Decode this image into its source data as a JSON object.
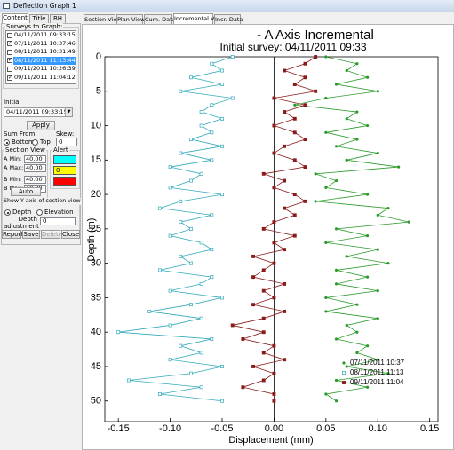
{
  "window": {
    "title": "Deflection Graph 1"
  },
  "left_panel": {
    "tabs": [
      "Content",
      "Title",
      "BH"
    ],
    "active_tab": 0,
    "surveys_label": "Surveys to Graph:",
    "surveys": [
      {
        "label": "04/11/2011 09:33:15",
        "checked": false,
        "selected": false
      },
      {
        "label": "07/11/2011 10:37:46",
        "checked": true,
        "selected": false
      },
      {
        "label": "08/11/2011 10:31:49",
        "checked": false,
        "selected": false
      },
      {
        "label": "08/11/2011 11:13:44",
        "checked": true,
        "selected": true
      },
      {
        "label": "09/11/2011 10:26:39",
        "checked": false,
        "selected": false
      },
      {
        "label": "09/11/2011 11:04:12",
        "checked": true,
        "selected": false
      }
    ],
    "initial_label": "Initial",
    "initial_value": "04/11/2011 09:33:15",
    "apply": "Apply",
    "sum_from_label": "Sum From:",
    "sum_from_options": [
      "Bottom",
      "Top"
    ],
    "sum_from_selected": 0,
    "skew_label": "Skew:",
    "skew_value": "0",
    "section_view_label": "Section View",
    "section_fields": [
      {
        "label": "A Min:",
        "value": "40.00"
      },
      {
        "label": "A Max:",
        "value": "40.00"
      },
      {
        "label": "B Min:",
        "value": "40.00"
      },
      {
        "label": "B Max:",
        "value": "40.00"
      }
    ],
    "alert_label": "Alert",
    "alerts": [
      {
        "color": "#00ffff"
      },
      {
        "color": "#ffff00",
        "value": "0"
      },
      {
        "color": "#ff0000"
      }
    ],
    "auto": "Auto",
    "show_y_label": "Show Y axis of section view as:",
    "show_y_options": [
      "Depth",
      "Elevation"
    ],
    "show_y_selected": 0,
    "depth_adj_label": "Depth adjustment",
    "depth_adj_value": "0",
    "buttons": [
      {
        "label": "Report",
        "enabled": true
      },
      {
        "label": "Save",
        "enabled": true
      },
      {
        "label": "Delete",
        "enabled": false
      },
      {
        "label": "Close",
        "enabled": true
      }
    ]
  },
  "chart_tabs": {
    "tabs": [
      "Section View",
      "Plan View",
      "Cum. Data",
      "Incremental View",
      "Incr. Data"
    ],
    "active": 3
  },
  "chart_data": {
    "type": "line",
    "title": "- A Axis Incremental",
    "subtitle": "Initial survey: 04/11/2011 09:33",
    "x_label": "Depth (m)",
    "y_label": "Displacement (mm)",
    "x": [
      0,
      1,
      2,
      3,
      4,
      5,
      6,
      7,
      8,
      9,
      10,
      11,
      12,
      13,
      14,
      15,
      16,
      17,
      18,
      19,
      20,
      21,
      22,
      23,
      24,
      25,
      26,
      27,
      28,
      29,
      30,
      31,
      32,
      33,
      34,
      35,
      36,
      37,
      38,
      39,
      40,
      41,
      42,
      43,
      44,
      45,
      46,
      47,
      48,
      49,
      50
    ],
    "xlim": [
      0,
      53
    ],
    "xticks": [
      0,
      5,
      10,
      15,
      20,
      25,
      30,
      35,
      40,
      45,
      50
    ],
    "ylim": [
      -0.163,
      0.158
    ],
    "yticks": [
      -0.15,
      {
        "value": -0.1,
        "label": "-0.10"
      },
      -0.05,
      {
        "value": 0,
        "label": "0.00"
      },
      0.05,
      {
        "value": 0.1,
        "label": "0.10"
      },
      0.15
    ],
    "legend": "lower right",
    "series": [
      {
        "name": "07/11/2011 10:37",
        "color": "#2b9a2b",
        "marker": "circle",
        "values": [
          0.05,
          0.08,
          0.07,
          0.09,
          0.06,
          0.1,
          0.05,
          0.02,
          0.08,
          0.07,
          0.09,
          0.05,
          0.08,
          0.06,
          0.1,
          0.07,
          0.12,
          0.04,
          0.06,
          0.05,
          0.09,
          0.04,
          0.11,
          0.1,
          0.13,
          0.06,
          0.09,
          0.05,
          0.1,
          0.07,
          0.11,
          0.06,
          0.09,
          0.06,
          0.1,
          0.05,
          0.08,
          0.05,
          0.1,
          0.07,
          0.08,
          0.06,
          0.09,
          0.08,
          0.1,
          0.07,
          0.11,
          0.06,
          0.09,
          0.05,
          0.06
        ]
      },
      {
        "name": "08/11/2011 11:13",
        "color": "#33aabb",
        "marker": "open-square",
        "values": [
          -0.04,
          -0.06,
          -0.05,
          -0.08,
          -0.05,
          -0.09,
          -0.04,
          -0.06,
          -0.07,
          -0.05,
          -0.07,
          -0.06,
          -0.08,
          -0.05,
          -0.09,
          -0.06,
          -0.1,
          -0.07,
          -0.08,
          -0.1,
          -0.05,
          -0.09,
          -0.11,
          -0.06,
          -0.09,
          -0.08,
          -0.1,
          -0.07,
          -0.06,
          -0.09,
          -0.08,
          -0.11,
          -0.06,
          -0.07,
          -0.1,
          -0.05,
          -0.08,
          -0.12,
          -0.07,
          -0.1,
          -0.15,
          -0.06,
          -0.09,
          -0.07,
          -0.1,
          -0.05,
          -0.08,
          -0.14,
          -0.07,
          -0.11,
          -0.05
        ]
      },
      {
        "name": "09/11/2011 11:04",
        "color": "#8b1a1a",
        "marker": "square",
        "values": [
          0.04,
          0.03,
          0.01,
          0.03,
          0.02,
          0.04,
          0.0,
          0.03,
          0.01,
          0.02,
          0.0,
          0.02,
          0.03,
          0.01,
          0.0,
          0.02,
          0.03,
          -0.01,
          0.01,
          0.0,
          0.02,
          0.03,
          0.01,
          0.02,
          0.0,
          -0.01,
          0.02,
          0.0,
          0.01,
          -0.02,
          0.0,
          -0.01,
          -0.02,
          0.01,
          -0.01,
          0.0,
          -0.02,
          0.01,
          -0.01,
          -0.04,
          -0.01,
          -0.03,
          0.0,
          -0.01,
          0.01,
          -0.02,
          0.0,
          -0.01,
          -0.03,
          0.0,
          0.0
        ]
      }
    ]
  }
}
